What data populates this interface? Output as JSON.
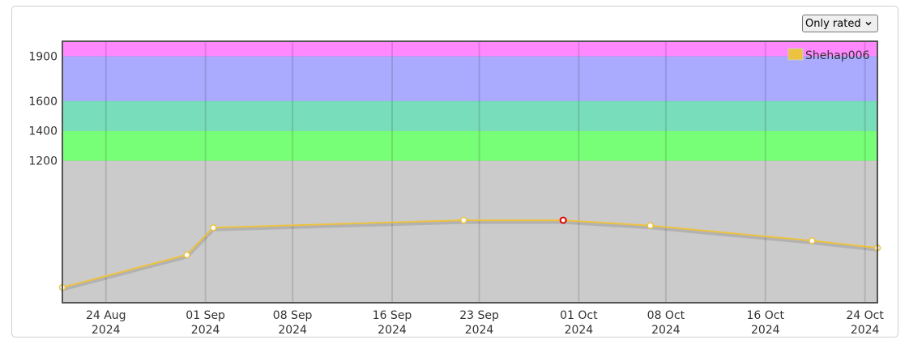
{
  "rating_filter": {
    "selected": "Only rated"
  },
  "icons": {
    "dropdown": "chevron-down-icon"
  },
  "chart_data": {
    "type": "line",
    "title": "",
    "xlabel": "",
    "ylabel": "",
    "x_ticks": [
      {
        "date": "2024-08-24",
        "line1": "24 Aug",
        "line2": "2024"
      },
      {
        "date": "2024-09-01",
        "line1": "01 Sep",
        "line2": "2024"
      },
      {
        "date": "2024-09-08",
        "line1": "08 Sep",
        "line2": "2024"
      },
      {
        "date": "2024-09-16",
        "line1": "16 Sep",
        "line2": "2024"
      },
      {
        "date": "2024-09-23",
        "line1": "23 Sep",
        "line2": "2024"
      },
      {
        "date": "2024-10-01",
        "line1": "01 Oct",
        "line2": "2024"
      },
      {
        "date": "2024-10-08",
        "line1": "08 Oct",
        "line2": "2024"
      },
      {
        "date": "2024-10-16",
        "line1": "16 Oct",
        "line2": "2024"
      },
      {
        "date": "2024-10-24",
        "line1": "24 Oct",
        "line2": "2024"
      }
    ],
    "y_ticks": [
      1200,
      1400,
      1600,
      1900
    ],
    "xlim": [
      "2024-08-20T12:00",
      "2024-10-25"
    ],
    "ylim": [
      250,
      2000
    ],
    "bands": [
      {
        "from": 250,
        "to": 1200,
        "color": "#cbcbcb"
      },
      {
        "from": 1200,
        "to": 1400,
        "color": "#77ff77"
      },
      {
        "from": 1400,
        "to": 1600,
        "color": "#77ddbb"
      },
      {
        "from": 1600,
        "to": 1900,
        "color": "#aaaaff"
      },
      {
        "from": 1900,
        "to": 2000,
        "color": "#ff88ff"
      }
    ],
    "grid": true,
    "legend": "top-right",
    "series": [
      {
        "name": "Shehap006",
        "color": "#edc240",
        "points": [
          {
            "x": "2024-08-20T12:00",
            "y": 352
          },
          {
            "x": "2024-08-30T12:00",
            "y": 570
          },
          {
            "x": "2024-09-01T15:00",
            "y": 752
          },
          {
            "x": "2024-09-21T18:00",
            "y": 802
          },
          {
            "x": "2024-09-29T18:00",
            "y": 802,
            "highlight": true
          },
          {
            "x": "2024-10-06T18:00",
            "y": 766
          },
          {
            "x": "2024-10-19T18:00",
            "y": 665
          },
          {
            "x": "2024-10-25T00:00",
            "y": 617
          }
        ]
      }
    ]
  }
}
